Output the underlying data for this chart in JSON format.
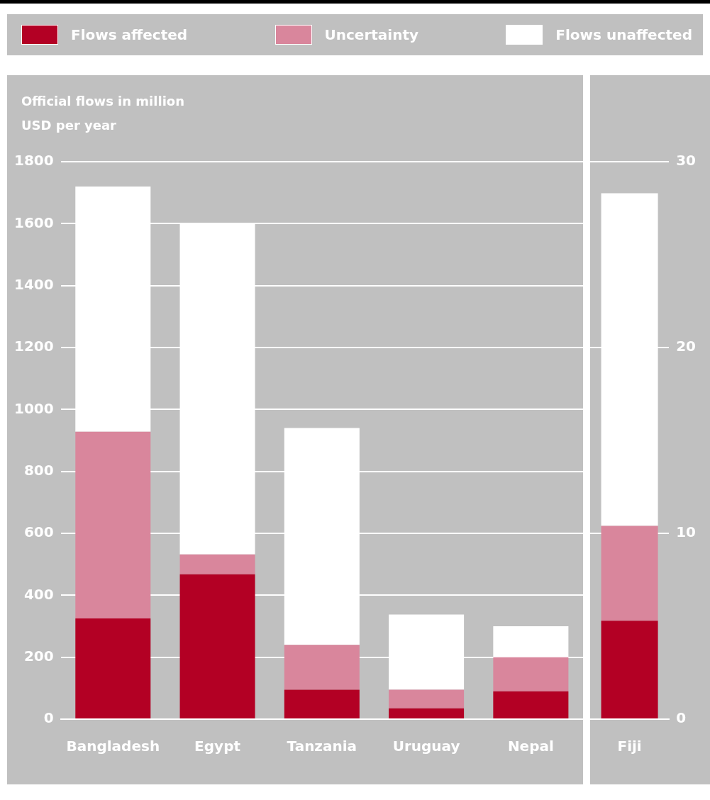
{
  "chart_data": [
    {
      "type": "bar",
      "ylabel": "Official flows in million USD per year",
      "categories": [
        "Bangladesh",
        "Egypt",
        "Tanzania",
        "Uruguay",
        "Nepal"
      ],
      "stacked": true,
      "legend": "top",
      "grid": "y",
      "ylim": [
        0,
        1800
      ],
      "yticks": [
        0,
        200,
        400,
        600,
        800,
        1000,
        1200,
        1400,
        1600,
        1800
      ],
      "series": [
        {
          "name": "Flows affected",
          "color": "#b30024",
          "values": [
            325,
            468,
            95,
            35,
            90
          ]
        },
        {
          "name": "Uncertainty",
          "color": "#d9869c",
          "values": [
            603,
            64,
            145,
            60,
            110
          ]
        },
        {
          "name": "Flows unaffected",
          "color": "#ffffff",
          "values": [
            792,
            1068,
            700,
            243,
            100
          ]
        }
      ]
    },
    {
      "type": "bar",
      "categories": [
        "Fiji"
      ],
      "stacked": true,
      "grid": "y",
      "ylim": [
        0,
        30
      ],
      "yticks": [
        0,
        10,
        20,
        30
      ],
      "series": [
        {
          "color": "#b30024",
          "values": [
            5.3
          ]
        },
        {
          "color": "#d9869c",
          "values": [
            5.1
          ]
        },
        {
          "color": "#ffffff",
          "values": [
            17.9
          ]
        }
      ]
    }
  ]
}
